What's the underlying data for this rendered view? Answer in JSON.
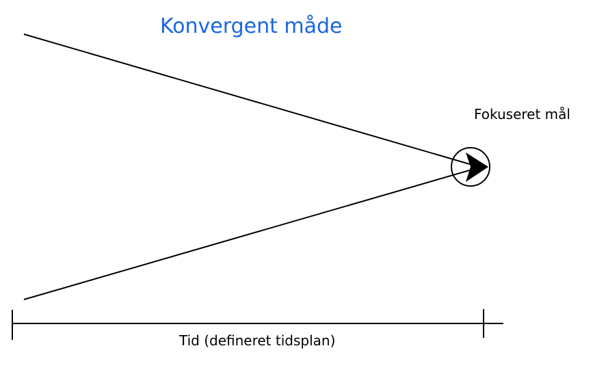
{
  "diagram": {
    "title": "Konvergent måde",
    "goal_label": "Fokuseret mål",
    "time_label": "Tid (defineret tidsplan)",
    "colors": {
      "title": "#1a66e0",
      "lines": "#000000",
      "background": "#ffffff"
    },
    "icons": {
      "goal": "circle-target-icon",
      "arrow": "arrowhead-icon"
    }
  }
}
